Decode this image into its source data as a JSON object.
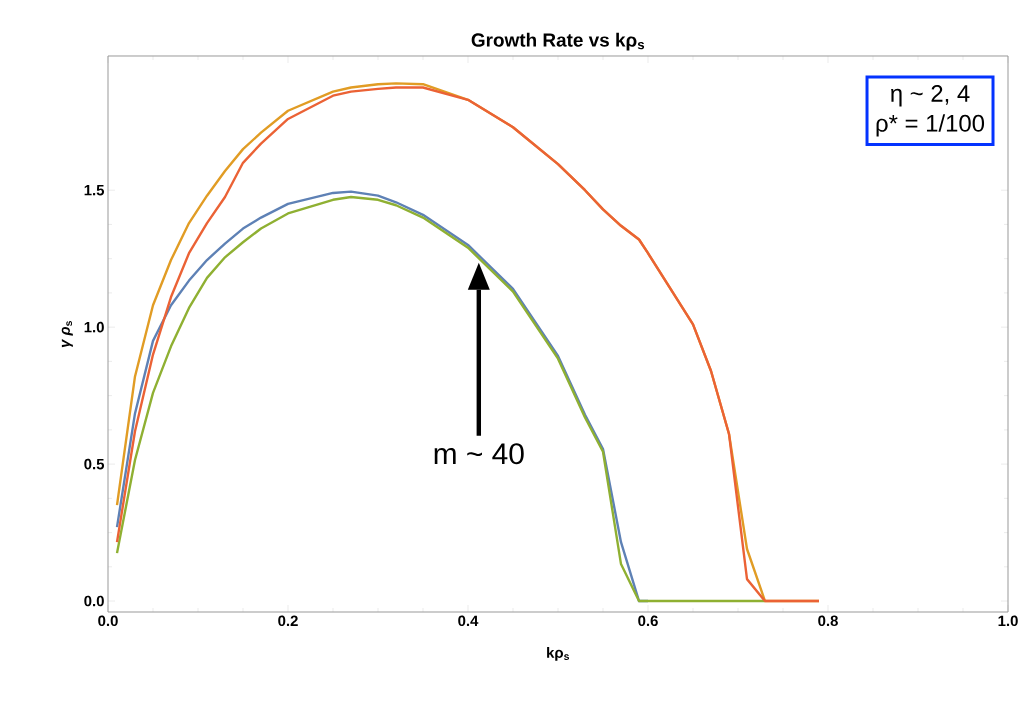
{
  "chart_data": {
    "type": "line",
    "title": "Growth Rate vs kρ$_{s}$",
    "xlabel": "kρ$_{s}$",
    "ylabel": "*γ ρ*$_{s}$",
    "xlim": [
      0,
      1.0
    ],
    "ylim": [
      -0.04,
      1.99
    ],
    "xticks": [
      {
        "value": 0,
        "label": "0.0"
      },
      {
        "value": 0.2,
        "label": "0.2"
      },
      {
        "value": 0.4,
        "label": "0.4"
      },
      {
        "value": 0.6,
        "label": "0.6"
      },
      {
        "value": 0.8,
        "label": "0.8"
      },
      {
        "value": 1.0,
        "label": "1.0"
      }
    ],
    "yticks": [
      {
        "value": 0,
        "label": "0.0"
      },
      {
        "value": 0.5,
        "label": "0.5"
      },
      {
        "value": 1.0,
        "label": "1.0"
      },
      {
        "value": 1.5,
        "label": "1.5"
      }
    ],
    "x": [
      0.01,
      0.03,
      0.05,
      0.07,
      0.09,
      0.11,
      0.13,
      0.15,
      0.17,
      0.2,
      0.25,
      0.27,
      0.3,
      0.32,
      0.35,
      0.4,
      0.45,
      0.5,
      0.53,
      0.55,
      0.57,
      0.59,
      0.6,
      0.65,
      0.67,
      0.69,
      0.71,
      0.73,
      0.79
    ],
    "series": [
      {
        "color": "#5e81b5",
        "values": [
          0.27,
          0.685,
          0.95,
          1.08,
          1.17,
          1.245,
          1.305,
          1.36,
          1.4,
          1.45,
          1.49,
          1.495,
          1.48,
          1.456,
          1.41,
          1.3,
          1.14,
          0.895,
          0.68,
          0.555,
          0.215,
          0,
          0,
          null,
          null,
          null,
          null,
          null,
          null
        ]
      },
      {
        "color": "#e19c24",
        "values": [
          0.35,
          0.82,
          1.08,
          1.245,
          1.38,
          1.48,
          1.57,
          1.65,
          1.71,
          1.79,
          1.86,
          1.875,
          1.887,
          1.89,
          1.887,
          1.83,
          1.73,
          1.595,
          1.5,
          1.43,
          1.37,
          1.32,
          1.27,
          1.01,
          0.84,
          0.61,
          0.19,
          0,
          0
        ]
      },
      {
        "color": "#8fb032",
        "values": [
          0.175,
          0.515,
          0.76,
          0.93,
          1.07,
          1.18,
          1.255,
          1.31,
          1.36,
          1.415,
          1.465,
          1.475,
          1.465,
          1.445,
          1.4,
          1.29,
          1.13,
          0.885,
          0.67,
          0.545,
          0.135,
          0,
          0,
          0,
          0,
          0,
          0,
          0,
          null
        ]
      },
      {
        "color": "#eb6235",
        "values": [
          0.215,
          0.62,
          0.9,
          1.11,
          1.27,
          1.38,
          1.475,
          1.6,
          1.67,
          1.76,
          1.845,
          1.86,
          1.87,
          1.875,
          1.875,
          1.83,
          1.73,
          1.595,
          1.5,
          1.43,
          1.37,
          1.32,
          1.27,
          1.01,
          0.84,
          0.61,
          0.08,
          0,
          0
        ]
      }
    ],
    "annotations": [
      "η ~ 2, 4",
      "ρ* = 1/100",
      "m ~ 40"
    ]
  }
}
